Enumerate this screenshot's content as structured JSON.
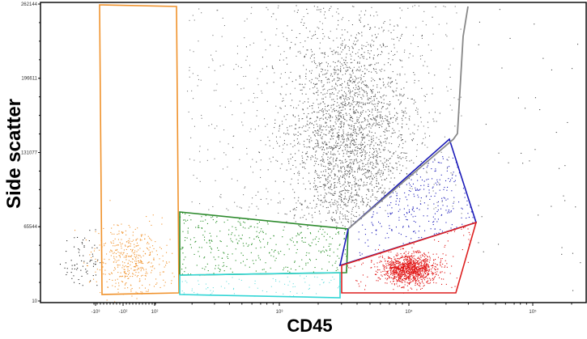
{
  "chart_data": {
    "type": "scatter",
    "title": "",
    "xlabel": "CD45",
    "ylabel": "Side scatter",
    "x_scale": "biexponential",
    "x_tick_labels": [
      "-10³",
      "-10²",
      "10²",
      "10³",
      "10⁴",
      "10⁵"
    ],
    "y_tick_labels": [
      "10",
      "65544",
      "131077",
      "196611",
      "262144"
    ],
    "y_ticks": [
      10,
      65544,
      131077,
      196611,
      262144
    ],
    "ylim": [
      10,
      262144
    ],
    "gates": [
      {
        "name": "orange-gate",
        "color": "#f0922b"
      },
      {
        "name": "green-gate",
        "color": "#2e8b2e"
      },
      {
        "name": "cyan-gate",
        "color": "#33d6d6"
      },
      {
        "name": "blue-gate",
        "color": "#1a1ab8"
      },
      {
        "name": "red-gate",
        "color": "#dd1f1f"
      },
      {
        "name": "gray-gate",
        "color": "#888888"
      }
    ],
    "grid": false
  }
}
